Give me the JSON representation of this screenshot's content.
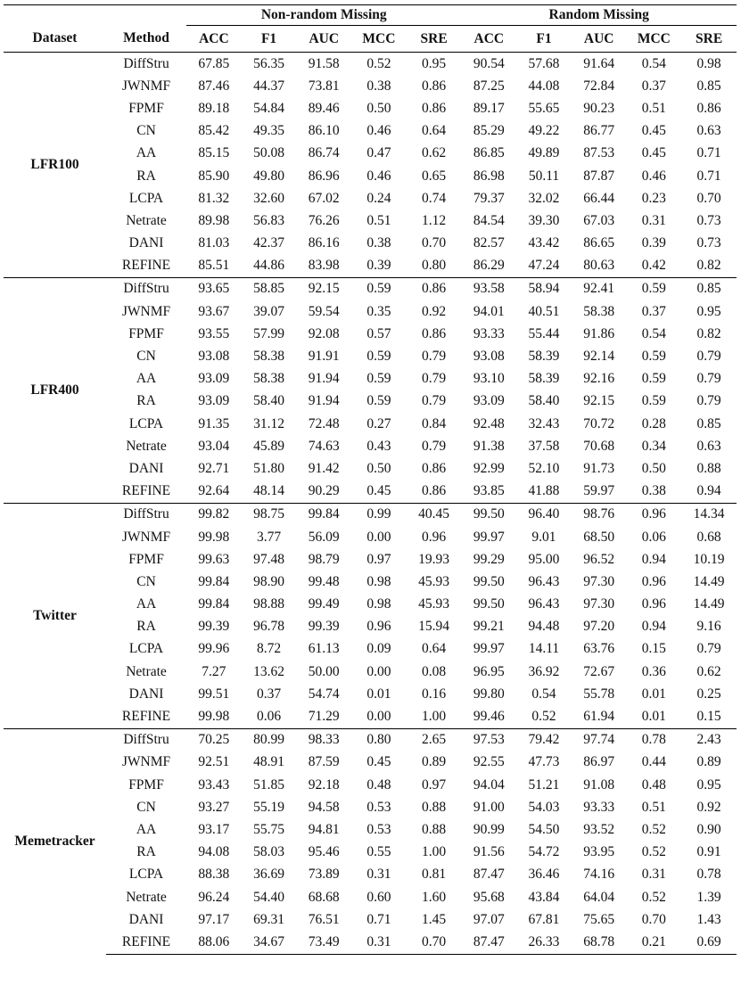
{
  "table": {
    "dataset_header": "Dataset",
    "method_header": "Method",
    "groups": [
      "Non-random Missing",
      "Random Missing"
    ],
    "metrics": [
      "ACC",
      "F1",
      "AUC",
      "MCC",
      "SRE"
    ],
    "datasets": [
      {
        "name": "LFR100",
        "rows": [
          {
            "method": "DiffStru",
            "values": [
              "67.85",
              "56.35",
              "91.58",
              "0.52",
              "0.95",
              "90.54",
              "57.68",
              "91.64",
              "0.54",
              "0.98"
            ]
          },
          {
            "method": "JWNMF",
            "values": [
              "87.46",
              "44.37",
              "73.81",
              "0.38",
              "0.86",
              "87.25",
              "44.08",
              "72.84",
              "0.37",
              "0.85"
            ]
          },
          {
            "method": "FPMF",
            "values": [
              "89.18",
              "54.84",
              "89.46",
              "0.50",
              "0.86",
              "89.17",
              "55.65",
              "90.23",
              "0.51",
              "0.86"
            ]
          },
          {
            "method": "CN",
            "values": [
              "85.42",
              "49.35",
              "86.10",
              "0.46",
              "0.64",
              "85.29",
              "49.22",
              "86.77",
              "0.45",
              "0.63"
            ]
          },
          {
            "method": "AA",
            "values": [
              "85.15",
              "50.08",
              "86.74",
              "0.47",
              "0.62",
              "86.85",
              "49.89",
              "87.53",
              "0.45",
              "0.71"
            ]
          },
          {
            "method": "RA",
            "values": [
              "85.90",
              "49.80",
              "86.96",
              "0.46",
              "0.65",
              "86.98",
              "50.11",
              "87.87",
              "0.46",
              "0.71"
            ]
          },
          {
            "method": "LCPA",
            "values": [
              "81.32",
              "32.60",
              "67.02",
              "0.24",
              "0.74",
              "79.37",
              "32.02",
              "66.44",
              "0.23",
              "0.70"
            ]
          },
          {
            "method": "Netrate",
            "values": [
              "89.98",
              "56.83",
              "76.26",
              "0.51",
              "1.12",
              "84.54",
              "39.30",
              "67.03",
              "0.31",
              "0.73"
            ]
          },
          {
            "method": "DANI",
            "values": [
              "81.03",
              "42.37",
              "86.16",
              "0.38",
              "0.70",
              "82.57",
              "43.42",
              "86.65",
              "0.39",
              "0.73"
            ]
          },
          {
            "method": "REFINE",
            "values": [
              "85.51",
              "44.86",
              "83.98",
              "0.39",
              "0.80",
              "86.29",
              "47.24",
              "80.63",
              "0.42",
              "0.82"
            ]
          }
        ]
      },
      {
        "name": "LFR400",
        "rows": [
          {
            "method": "DiffStru",
            "values": [
              "93.65",
              "58.85",
              "92.15",
              "0.59",
              "0.86",
              "93.58",
              "58.94",
              "92.41",
              "0.59",
              "0.85"
            ]
          },
          {
            "method": "JWNMF",
            "values": [
              "93.67",
              "39.07",
              "59.54",
              "0.35",
              "0.92",
              "94.01",
              "40.51",
              "58.38",
              "0.37",
              "0.95"
            ]
          },
          {
            "method": "FPMF",
            "values": [
              "93.55",
              "57.99",
              "92.08",
              "0.57",
              "0.86",
              "93.33",
              "55.44",
              "91.86",
              "0.54",
              "0.82"
            ]
          },
          {
            "method": "CN",
            "values": [
              "93.08",
              "58.38",
              "91.91",
              "0.59",
              "0.79",
              "93.08",
              "58.39",
              "92.14",
              "0.59",
              "0.79"
            ]
          },
          {
            "method": "AA",
            "values": [
              "93.09",
              "58.38",
              "91.94",
              "0.59",
              "0.79",
              "93.10",
              "58.39",
              "92.16",
              "0.59",
              "0.79"
            ]
          },
          {
            "method": "RA",
            "values": [
              "93.09",
              "58.40",
              "91.94",
              "0.59",
              "0.79",
              "93.09",
              "58.40",
              "92.15",
              "0.59",
              "0.79"
            ]
          },
          {
            "method": "LCPA",
            "values": [
              "91.35",
              "31.12",
              "72.48",
              "0.27",
              "0.84",
              "92.48",
              "32.43",
              "70.72",
              "0.28",
              "0.85"
            ]
          },
          {
            "method": "Netrate",
            "values": [
              "93.04",
              "45.89",
              "74.63",
              "0.43",
              "0.79",
              "91.38",
              "37.58",
              "70.68",
              "0.34",
              "0.63"
            ]
          },
          {
            "method": "DANI",
            "values": [
              "92.71",
              "51.80",
              "91.42",
              "0.50",
              "0.86",
              "92.99",
              "52.10",
              "91.73",
              "0.50",
              "0.88"
            ]
          },
          {
            "method": "REFINE",
            "values": [
              "92.64",
              "48.14",
              "90.29",
              "0.45",
              "0.86",
              "93.85",
              "41.88",
              "59.97",
              "0.38",
              "0.94"
            ]
          }
        ]
      },
      {
        "name": "Twitter",
        "rows": [
          {
            "method": "DiffStru",
            "values": [
              "99.82",
              "98.75",
              "99.84",
              "0.99",
              "40.45",
              "99.50",
              "96.40",
              "98.76",
              "0.96",
              "14.34"
            ]
          },
          {
            "method": "JWNMF",
            "values": [
              "99.98",
              "3.77",
              "56.09",
              "0.00",
              "0.96",
              "99.97",
              "9.01",
              "68.50",
              "0.06",
              "0.68"
            ]
          },
          {
            "method": "FPMF",
            "values": [
              "99.63",
              "97.48",
              "98.79",
              "0.97",
              "19.93",
              "99.29",
              "95.00",
              "96.52",
              "0.94",
              "10.19"
            ]
          },
          {
            "method": "CN",
            "values": [
              "99.84",
              "98.90",
              "99.48",
              "0.98",
              "45.93",
              "99.50",
              "96.43",
              "97.30",
              "0.96",
              "14.49"
            ]
          },
          {
            "method": "AA",
            "values": [
              "99.84",
              "98.88",
              "99.49",
              "0.98",
              "45.93",
              "99.50",
              "96.43",
              "97.30",
              "0.96",
              "14.49"
            ]
          },
          {
            "method": "RA",
            "values": [
              "99.39",
              "96.78",
              "99.39",
              "0.96",
              "15.94",
              "99.21",
              "94.48",
              "97.20",
              "0.94",
              "9.16"
            ]
          },
          {
            "method": "LCPA",
            "values": [
              "99.96",
              "8.72",
              "61.13",
              "0.09",
              "0.64",
              "99.97",
              "14.11",
              "63.76",
              "0.15",
              "0.79"
            ]
          },
          {
            "method": "Netrate",
            "values": [
              "7.27",
              "13.62",
              "50.00",
              "0.00",
              "0.08",
              "96.95",
              "36.92",
              "72.67",
              "0.36",
              "0.62"
            ]
          },
          {
            "method": "DANI",
            "values": [
              "99.51",
              "0.37",
              "54.74",
              "0.01",
              "0.16",
              "99.80",
              "0.54",
              "55.78",
              "0.01",
              "0.25"
            ]
          },
          {
            "method": "REFINE",
            "values": [
              "99.98",
              "0.06",
              "71.29",
              "0.00",
              "1.00",
              "99.46",
              "0.52",
              "61.94",
              "0.01",
              "0.15"
            ]
          }
        ]
      },
      {
        "name": "Memetracker",
        "rows": [
          {
            "method": "DiffStru",
            "values": [
              "70.25",
              "80.99",
              "98.33",
              "0.80",
              "2.65",
              "97.53",
              "79.42",
              "97.74",
              "0.78",
              "2.43"
            ]
          },
          {
            "method": "JWNMF",
            "values": [
              "92.51",
              "48.91",
              "87.59",
              "0.45",
              "0.89",
              "92.55",
              "47.73",
              "86.97",
              "0.44",
              "0.89"
            ]
          },
          {
            "method": "FPMF",
            "values": [
              "93.43",
              "51.85",
              "92.18",
              "0.48",
              "0.97",
              "94.04",
              "51.21",
              "91.08",
              "0.48",
              "0.95"
            ]
          },
          {
            "method": "CN",
            "values": [
              "93.27",
              "55.19",
              "94.58",
              "0.53",
              "0.88",
              "91.00",
              "54.03",
              "93.33",
              "0.51",
              "0.92"
            ]
          },
          {
            "method": "AA",
            "values": [
              "93.17",
              "55.75",
              "94.81",
              "0.53",
              "0.88",
              "90.99",
              "54.50",
              "93.52",
              "0.52",
              "0.90"
            ]
          },
          {
            "method": "RA",
            "values": [
              "94.08",
              "58.03",
              "95.46",
              "0.55",
              "1.00",
              "91.56",
              "54.72",
              "93.95",
              "0.52",
              "0.91"
            ]
          },
          {
            "method": "LCPA",
            "values": [
              "88.38",
              "36.69",
              "73.89",
              "0.31",
              "0.81",
              "87.47",
              "36.46",
              "74.16",
              "0.31",
              "0.78"
            ]
          },
          {
            "method": "Netrate",
            "values": [
              "96.24",
              "54.40",
              "68.68",
              "0.60",
              "1.60",
              "95.68",
              "43.84",
              "64.04",
              "0.52",
              "1.39"
            ]
          },
          {
            "method": "DANI",
            "values": [
              "97.17",
              "69.31",
              "76.51",
              "0.71",
              "1.45",
              "97.07",
              "67.81",
              "75.65",
              "0.70",
              "1.43"
            ]
          },
          {
            "method": "REFINE",
            "values": [
              "88.06",
              "34.67",
              "73.49",
              "0.31",
              "0.70",
              "87.47",
              "26.33",
              "68.78",
              "0.21",
              "0.69"
            ]
          }
        ]
      }
    ]
  }
}
